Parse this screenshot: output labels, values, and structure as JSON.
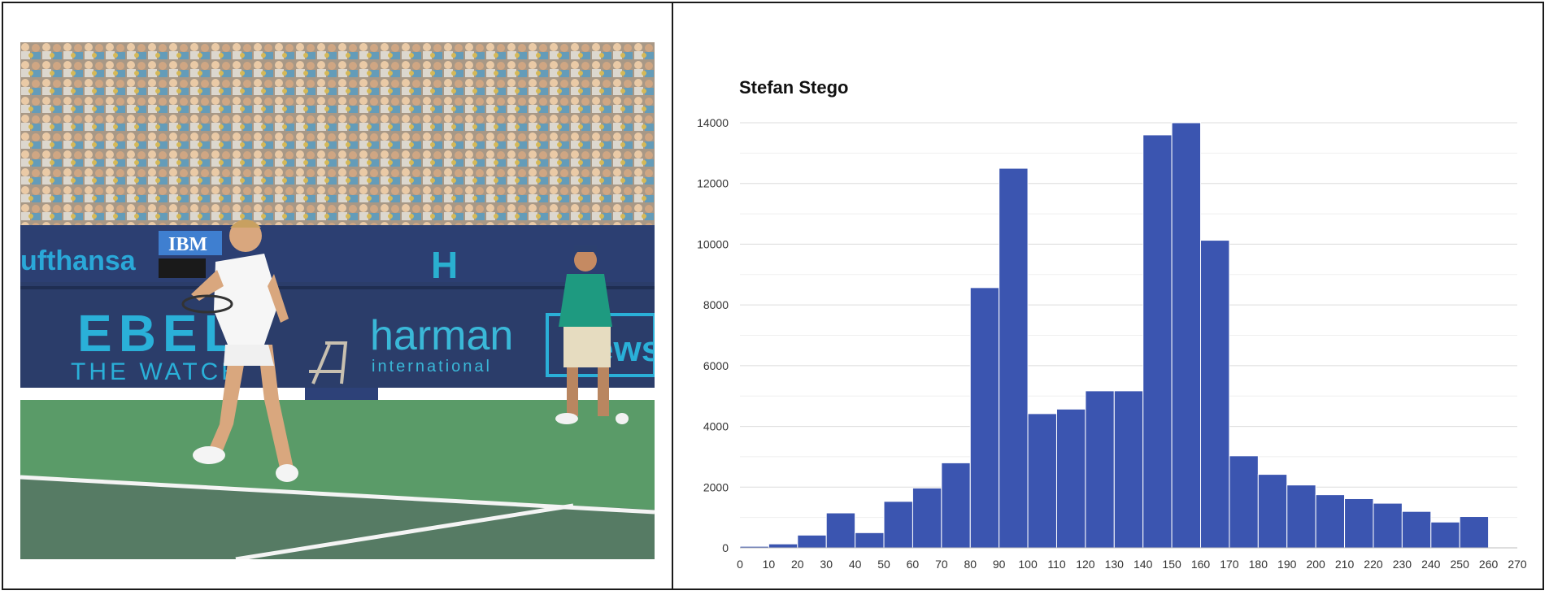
{
  "photo": {
    "banner_texts": [
      "ufthansa",
      "IBM",
      "EBEL",
      "THE WATCH",
      "harman",
      "international",
      "H",
      "ews"
    ]
  },
  "colors": {
    "bar": "#3b55b0",
    "court": "#5a9b68",
    "banner": "#2a3d6e",
    "grid": "#e3e3e3"
  },
  "chart_data": {
    "type": "bar",
    "title": "Stefan Stego",
    "xlabel": "",
    "ylabel": "",
    "bin_width": 10,
    "x": [
      0,
      10,
      20,
      30,
      40,
      50,
      60,
      70,
      80,
      90,
      100,
      110,
      120,
      130,
      140,
      150,
      160,
      170,
      180,
      190,
      200,
      210,
      220,
      230,
      240,
      250
    ],
    "values": [
      50,
      130,
      420,
      1150,
      500,
      1530,
      1970,
      2800,
      8570,
      12500,
      4420,
      4570,
      5170,
      5170,
      13600,
      14000,
      10130,
      3030,
      2420,
      2070,
      1750,
      1620,
      1470,
      1200,
      850,
      1030
    ],
    "xlim": [
      0,
      270
    ],
    "ylim": [
      0,
      14000
    ],
    "xticks": [
      "0",
      "10",
      "20",
      "30",
      "40",
      "50",
      "60",
      "70",
      "80",
      "90",
      "100",
      "110",
      "120",
      "130",
      "140",
      "150",
      "160",
      "170",
      "180",
      "190",
      "200",
      "210",
      "220",
      "230",
      "240",
      "250",
      "260",
      "270"
    ],
    "yticks": [
      "0",
      "2000",
      "4000",
      "6000",
      "8000",
      "10000",
      "12000",
      "14000"
    ],
    "grid": true
  }
}
